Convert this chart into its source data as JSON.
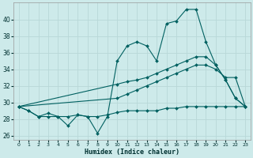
{
  "xlabel": "Humidex (Indice chaleur)",
  "xlim": [
    -0.5,
    23.5
  ],
  "ylim": [
    25.5,
    42.0
  ],
  "yticks": [
    26,
    28,
    30,
    32,
    34,
    36,
    38,
    40
  ],
  "xticks": [
    0,
    1,
    2,
    3,
    4,
    5,
    6,
    7,
    8,
    9,
    10,
    11,
    12,
    13,
    14,
    15,
    16,
    17,
    18,
    19,
    20,
    21,
    22,
    23
  ],
  "bg_color": "#cdeaea",
  "grid_color": "#b8d8d8",
  "line_color": "#006060",
  "line1_x": [
    0,
    1,
    2,
    3,
    4,
    5,
    6,
    7,
    8,
    9,
    10,
    11,
    12,
    13,
    14,
    15,
    16,
    17,
    18,
    19,
    20,
    21,
    22,
    23
  ],
  "line1_y": [
    29.5,
    29.0,
    28.3,
    28.7,
    28.3,
    27.2,
    28.5,
    28.3,
    26.3,
    28.3,
    35.0,
    36.8,
    37.3,
    36.8,
    35.0,
    39.5,
    39.8,
    41.2,
    41.2,
    37.3,
    34.5,
    32.7,
    30.5,
    29.5
  ],
  "line2_x": [
    0,
    10,
    11,
    12,
    13,
    14,
    15,
    16,
    17,
    18,
    19,
    20,
    21,
    22,
    23
  ],
  "line2_y": [
    29.5,
    32.2,
    32.5,
    32.7,
    33.0,
    33.5,
    34.0,
    34.5,
    35.0,
    35.5,
    35.5,
    34.5,
    32.7,
    30.5,
    29.5
  ],
  "line3_x": [
    0,
    10,
    11,
    12,
    13,
    14,
    15,
    16,
    17,
    18,
    19,
    20,
    21,
    22,
    23
  ],
  "line3_y": [
    29.5,
    30.5,
    31.0,
    31.5,
    32.0,
    32.5,
    33.0,
    33.5,
    34.0,
    34.5,
    34.5,
    34.0,
    33.0,
    33.0,
    29.5
  ],
  "line4_x": [
    0,
    1,
    2,
    3,
    4,
    5,
    6,
    7,
    8,
    9,
    10,
    11,
    12,
    13,
    14,
    15,
    16,
    17,
    18,
    19,
    20,
    21,
    22,
    23
  ],
  "line4_y": [
    29.5,
    29.0,
    28.3,
    28.3,
    28.3,
    28.3,
    28.5,
    28.3,
    28.3,
    28.5,
    28.8,
    29.0,
    29.0,
    29.0,
    29.0,
    29.3,
    29.3,
    29.5,
    29.5,
    29.5,
    29.5,
    29.5,
    29.5,
    29.5
  ]
}
